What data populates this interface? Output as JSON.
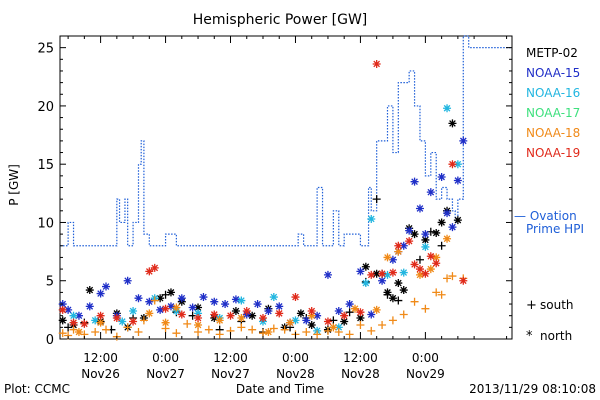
{
  "chart_data": {
    "type": "scatter",
    "title": "Hemispheric Power [GW]",
    "xlabel": "Date and Time",
    "ylabel": "P [GW]",
    "ylim": [
      0,
      26
    ],
    "xlim": [
      -19.5,
      64
    ],
    "x_units": "hours since 2013-11-26 00:00 UT",
    "grid": false,
    "legend_position": "right",
    "y_ticks": [
      0,
      5,
      10,
      15,
      20,
      25
    ],
    "x_ticks": [
      {
        "x": -12,
        "line1": "12:00",
        "line2": "Nov26"
      },
      {
        "x": 0,
        "line1": "0:00",
        "line2": "Nov27"
      },
      {
        "x": 12,
        "line1": "12:00",
        "line2": "Nov27"
      },
      {
        "x": 24,
        "line1": "0:00",
        "line2": "Nov28"
      },
      {
        "x": 36,
        "line1": "12:00",
        "line2": "Nov28"
      },
      {
        "x": 48,
        "line1": "0:00",
        "line2": "Nov29"
      }
    ],
    "legend": [
      {
        "name": "METP-02",
        "color": "#000000"
      },
      {
        "name": "NOAA-15",
        "color": "#1f2fc8"
      },
      {
        "name": "NOAA-16",
        "color": "#22b6e0"
      },
      {
        "name": "NOAA-17",
        "color": "#3ee07e"
      },
      {
        "name": "NOAA-18",
        "color": "#f08a18"
      },
      {
        "name": "NOAA-19",
        "color": "#e02a1a"
      }
    ],
    "ovation_label_line1": "— Ovation",
    "ovation_label_line2": "Prime HPI",
    "ovation_color": "#1f5fd8",
    "symbol_legend": [
      {
        "symbol": "+",
        "label": "south"
      },
      {
        "symbol": "*",
        "label": "north"
      }
    ],
    "ovation_steps": [
      [
        -19.5,
        8
      ],
      [
        -18,
        10
      ],
      [
        -17,
        8
      ],
      [
        -10,
        8
      ],
      [
        -9,
        12
      ],
      [
        -8.5,
        10
      ],
      [
        -7.5,
        12
      ],
      [
        -7,
        8
      ],
      [
        -6,
        10
      ],
      [
        -5,
        15
      ],
      [
        -4.5,
        17
      ],
      [
        -4,
        9
      ],
      [
        -3,
        8
      ],
      [
        -1,
        8
      ],
      [
        0,
        9
      ],
      [
        2,
        8
      ],
      [
        22,
        8
      ],
      [
        24,
        8
      ],
      [
        24.5,
        9
      ],
      [
        25.5,
        8
      ],
      [
        27,
        8
      ],
      [
        28,
        13
      ],
      [
        29,
        8
      ],
      [
        30,
        8
      ],
      [
        31,
        11
      ],
      [
        32,
        8
      ],
      [
        33,
        9
      ],
      [
        36,
        8
      ],
      [
        37.5,
        13
      ],
      [
        38,
        11
      ],
      [
        39,
        17
      ],
      [
        41,
        20
      ],
      [
        42,
        16
      ],
      [
        43,
        22
      ],
      [
        45,
        23
      ],
      [
        46,
        20
      ],
      [
        47,
        17
      ],
      [
        48,
        14
      ],
      [
        49,
        16
      ],
      [
        50,
        12
      ],
      [
        51,
        13
      ],
      [
        52,
        12
      ],
      [
        53,
        11
      ],
      [
        53.5,
        10
      ],
      [
        54,
        12
      ],
      [
        55,
        26
      ],
      [
        56,
        25
      ],
      [
        58,
        25
      ]
    ],
    "series": [
      {
        "name": "METP-02",
        "color": "#000000",
        "marker": "star",
        "points": [
          [
            -19,
            1.6
          ],
          [
            -17,
            1.2
          ],
          [
            -14,
            4.2
          ],
          [
            -12,
            1.5
          ],
          [
            -9,
            2.2
          ],
          [
            -7,
            1.0
          ],
          [
            -4,
            1.8
          ],
          [
            -1,
            3.5
          ],
          [
            1,
            4.0
          ],
          [
            3,
            3.2
          ],
          [
            6,
            2.7
          ],
          [
            9,
            1.8
          ],
          [
            13,
            2.4
          ],
          [
            16,
            2.0
          ],
          [
            19,
            2.6
          ],
          [
            22,
            1.0
          ],
          [
            25,
            2.2
          ],
          [
            27,
            1.2
          ],
          [
            30,
            0.8
          ],
          [
            33,
            1.5
          ],
          [
            36,
            1.8
          ],
          [
            37,
            6.2
          ],
          [
            39,
            5.6
          ],
          [
            41,
            4.0
          ],
          [
            42,
            3.5
          ],
          [
            43,
            4.8
          ],
          [
            44,
            4.2
          ],
          [
            45,
            9.5
          ],
          [
            46,
            9.0
          ],
          [
            48,
            8.5
          ],
          [
            50,
            9.1
          ],
          [
            51,
            10.0
          ],
          [
            52,
            11.0
          ],
          [
            53,
            18.5
          ],
          [
            54,
            10.2
          ]
        ]
      },
      {
        "name": "METP-02 south",
        "color": "#000000",
        "marker": "plus",
        "points": [
          [
            -18,
            1.0
          ],
          [
            -15,
            1.4
          ],
          [
            -10,
            0.8
          ],
          [
            -6,
            1.8
          ],
          [
            0,
            3.8
          ],
          [
            2,
            2.3
          ],
          [
            5,
            2.0
          ],
          [
            10,
            0.8
          ],
          [
            14,
            1.5
          ],
          [
            18,
            0.6
          ],
          [
            23,
            1.0
          ],
          [
            26,
            1.8
          ],
          [
            31,
            1.6
          ],
          [
            34,
            2.3
          ],
          [
            37,
            4.9
          ],
          [
            39,
            12.0
          ],
          [
            40,
            5.6
          ],
          [
            41,
            3.8
          ],
          [
            43,
            3.3
          ],
          [
            47,
            6.8
          ],
          [
            49,
            9.2
          ],
          [
            51,
            8.0
          ]
        ]
      },
      {
        "name": "NOAA-15",
        "color": "#1f2fc8",
        "marker": "star",
        "points": [
          [
            -19,
            3.0
          ],
          [
            -18,
            2.5
          ],
          [
            -16,
            2.0
          ],
          [
            -14,
            2.8
          ],
          [
            -12,
            3.9
          ],
          [
            -11,
            4.5
          ],
          [
            -9,
            2.0
          ],
          [
            -7,
            5.0
          ],
          [
            -5,
            3.5
          ],
          [
            -3,
            3.2
          ],
          [
            -1,
            2.5
          ],
          [
            1,
            2.8
          ],
          [
            3,
            3.5
          ],
          [
            5,
            2.7
          ],
          [
            7,
            3.6
          ],
          [
            9,
            3.2
          ],
          [
            11,
            3.0
          ],
          [
            13,
            3.4
          ],
          [
            15,
            2.1
          ],
          [
            17,
            3.0
          ],
          [
            19,
            2.4
          ],
          [
            21,
            2.8
          ],
          [
            23,
            1.4
          ],
          [
            26,
            1.6
          ],
          [
            28,
            2.0
          ],
          [
            30,
            5.5
          ],
          [
            32,
            2.4
          ],
          [
            34,
            3.0
          ],
          [
            36,
            5.8
          ],
          [
            38,
            2.1
          ],
          [
            40,
            5.0
          ],
          [
            42,
            6.8
          ],
          [
            43,
            7.5
          ],
          [
            44,
            8.0
          ],
          [
            45,
            9.3
          ],
          [
            46,
            13.5
          ],
          [
            47,
            11.2
          ],
          [
            48,
            9.0
          ],
          [
            49,
            12.6
          ],
          [
            51,
            13.9
          ],
          [
            52,
            10.8
          ],
          [
            53,
            9.6
          ],
          [
            54,
            13.6
          ],
          [
            55,
            17.0
          ]
        ]
      },
      {
        "name": "NOAA-16",
        "color": "#22b6e0",
        "marker": "star",
        "points": [
          [
            -17,
            2.0
          ],
          [
            -13,
            1.6
          ],
          [
            -8,
            1.5
          ],
          [
            -6,
            2.4
          ],
          [
            -2,
            3.5
          ],
          [
            2,
            2.4
          ],
          [
            6,
            2.2
          ],
          [
            10,
            1.8
          ],
          [
            14,
            3.3
          ],
          [
            18,
            1.5
          ],
          [
            20,
            3.6
          ],
          [
            24,
            1.6
          ],
          [
            28,
            0.7
          ],
          [
            32,
            1.0
          ],
          [
            37,
            4.8
          ],
          [
            38,
            10.3
          ],
          [
            41,
            5.5
          ],
          [
            44,
            5.7
          ],
          [
            48,
            7.9
          ],
          [
            52,
            19.8
          ],
          [
            54,
            15.0
          ]
        ]
      },
      {
        "name": "NOAA-18",
        "color": "#f08a18",
        "marker": "plus",
        "points": [
          [
            -19,
            0.5
          ],
          [
            -18,
            0.3
          ],
          [
            -17,
            0.8
          ],
          [
            -15,
            0.4
          ],
          [
            -13,
            0.6
          ],
          [
            -11,
            0.8
          ],
          [
            -9,
            0.2
          ],
          [
            -7,
            1.0
          ],
          [
            -5,
            0.6
          ],
          [
            -4,
            1.6
          ],
          [
            -2,
            3.3
          ],
          [
            0,
            0.9
          ],
          [
            2,
            0.5
          ],
          [
            4,
            1.3
          ],
          [
            6,
            0.6
          ],
          [
            8,
            0.8
          ],
          [
            10,
            0.4
          ],
          [
            12,
            0.7
          ],
          [
            14,
            1.0
          ],
          [
            16,
            0.8
          ],
          [
            18,
            0.5
          ],
          [
            20,
            0.9
          ],
          [
            22,
            0.8
          ],
          [
            24,
            0.4
          ],
          [
            26,
            0.6
          ],
          [
            28,
            0.4
          ],
          [
            30,
            0.7
          ],
          [
            32,
            0.6
          ],
          [
            34,
            0.4
          ],
          [
            36,
            1.2
          ],
          [
            38,
            0.7
          ],
          [
            40,
            1.2
          ],
          [
            42,
            1.6
          ],
          [
            44,
            2.1
          ],
          [
            46,
            3.2
          ],
          [
            48,
            2.6
          ],
          [
            50,
            4.0
          ],
          [
            51,
            3.8
          ],
          [
            52,
            5.2
          ],
          [
            53,
            5.4
          ],
          [
            55,
            5.2
          ]
        ]
      },
      {
        "name": "NOAA-18 north",
        "color": "#f08a18",
        "marker": "star",
        "points": [
          [
            -16,
            0.6
          ],
          [
            -12,
            1.4
          ],
          [
            -3,
            2.2
          ],
          [
            0,
            1.4
          ],
          [
            2,
            2.7
          ],
          [
            6,
            1.2
          ],
          [
            10,
            1.6
          ],
          [
            14,
            1.8
          ],
          [
            19,
            0.6
          ],
          [
            23,
            1.4
          ],
          [
            27,
            2.0
          ],
          [
            31,
            1.0
          ],
          [
            35,
            2.6
          ],
          [
            39,
            2.5
          ],
          [
            41,
            7.0
          ],
          [
            43,
            7.5
          ],
          [
            47,
            5.5
          ],
          [
            49,
            6.0
          ],
          [
            50,
            7.0
          ],
          [
            52,
            8.6
          ]
        ]
      },
      {
        "name": "NOAA-19",
        "color": "#e02a1a",
        "marker": "star",
        "points": [
          [
            -19,
            2.5
          ],
          [
            -17,
            1.4
          ],
          [
            -15,
            1.3
          ],
          [
            -12,
            2.0
          ],
          [
            -9,
            1.8
          ],
          [
            -6,
            1.5
          ],
          [
            -3,
            5.8
          ],
          [
            -2,
            6.1
          ],
          [
            0,
            2.6
          ],
          [
            3,
            2.1
          ],
          [
            6,
            1.8
          ],
          [
            9,
            2.1
          ],
          [
            12,
            2.0
          ],
          [
            15,
            2.4
          ],
          [
            18,
            1.8
          ],
          [
            21,
            2.2
          ],
          [
            24,
            3.6
          ],
          [
            27,
            2.4
          ],
          [
            30,
            1.5
          ],
          [
            33,
            2.0
          ],
          [
            36,
            2.3
          ],
          [
            38,
            5.5
          ],
          [
            39,
            23.6
          ],
          [
            40,
            5.6
          ],
          [
            42,
            5.7
          ],
          [
            43,
            8.0
          ],
          [
            45,
            8.4
          ],
          [
            46,
            6.4
          ],
          [
            47,
            6.0
          ],
          [
            48,
            5.6
          ],
          [
            49,
            7.1
          ],
          [
            50,
            6.5
          ],
          [
            53,
            15.0
          ],
          [
            55,
            5.0
          ]
        ]
      }
    ]
  },
  "footer": {
    "left": "Plot: CCMC",
    "center": "Date and Time",
    "right": "2013/11/29 08:10:08"
  }
}
